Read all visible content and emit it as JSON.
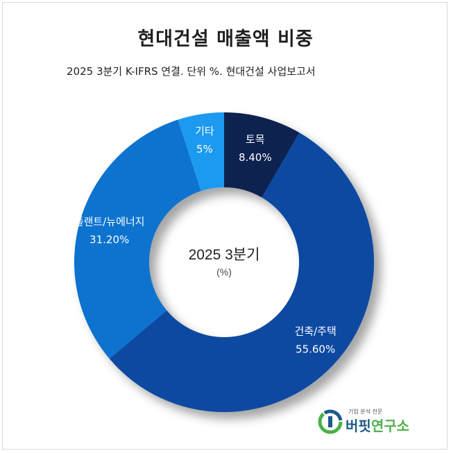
{
  "chart_data": {
    "type": "pie",
    "title": "현대건설 매출액 비중",
    "subtitle": "2025 3분기 K-IFRS 연결. 단위 %. 현대건설 사업보고서",
    "center_label": "2025 3분기",
    "center_unit": "(%)",
    "donut": true,
    "slices": [
      {
        "label": "토목",
        "value": 8.4,
        "value_label": "8.40%",
        "color": "#0b2150"
      },
      {
        "label": "건축/주택",
        "value": 55.6,
        "value_label": "55.60%",
        "color": "#0a48a1"
      },
      {
        "label": "플랜트/뉴에너지",
        "value": 31.2,
        "value_label": "31.20%",
        "color": "#0b73cf"
      },
      {
        "label": "기타",
        "value": 5,
        "value_label": "5%",
        "color": "#1f9af0"
      }
    ]
  },
  "logo": {
    "tagline": "기업 분석 전문",
    "name_main": "버핏",
    "name_accent": "연구소"
  }
}
